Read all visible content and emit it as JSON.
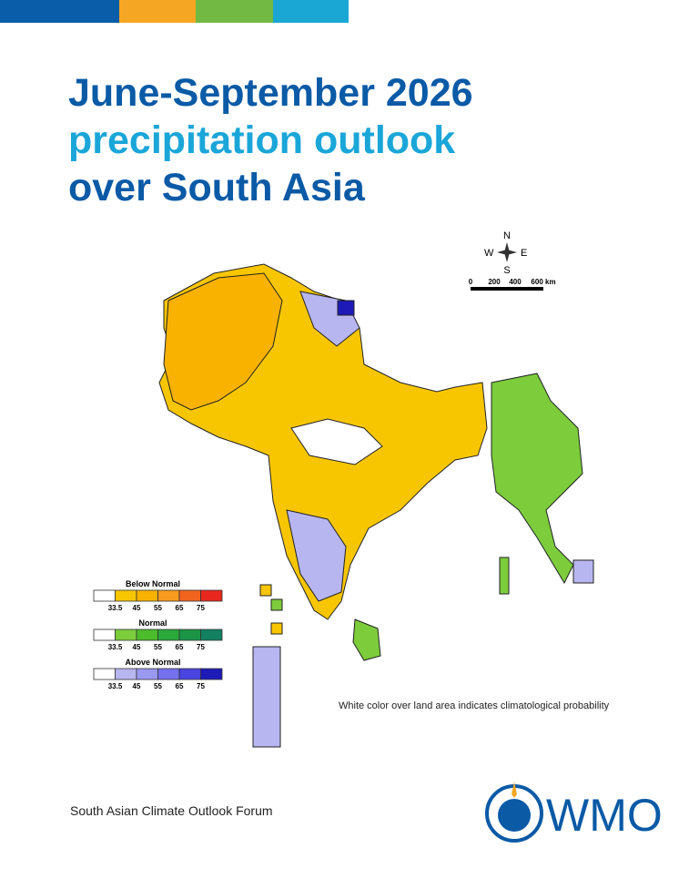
{
  "header": {
    "title_lines": [
      "June-September 2026",
      "precipitation outlook",
      "over South Asia"
    ]
  },
  "compass": {
    "north": "N",
    "south": "S",
    "east": "E",
    "west": "W"
  },
  "scale_bar": {
    "labels": [
      "0",
      "200",
      "400",
      "600 km"
    ]
  },
  "legend": [
    {
      "title": "Below Normal",
      "labels": [
        "33.5",
        "45",
        "55",
        "65",
        "75"
      ],
      "colors": [
        "#ffffff",
        "#f7c600",
        "#f9b200",
        "#f79a1e",
        "#f0641e",
        "#e8281e"
      ]
    },
    {
      "title": "Normal",
      "labels": [
        "33.5",
        "45",
        "55",
        "65",
        "75"
      ],
      "colors": [
        "#ffffff",
        "#7ccc3c",
        "#4cbb2c",
        "#2aa83a",
        "#1b9448",
        "#138060"
      ]
    },
    {
      "title": "Above Normal",
      "labels": [
        "33.5",
        "45",
        "55",
        "65",
        "75"
      ],
      "colors": [
        "#ffffff",
        "#b8b6f0",
        "#9a98f0",
        "#7470ee",
        "#4a44e0",
        "#1e1ab8"
      ]
    }
  ],
  "note": "White color over land area indicates climatological probability",
  "footer": {
    "forum": "South Asian Climate Outlook Forum",
    "logo_text": "WMO"
  }
}
